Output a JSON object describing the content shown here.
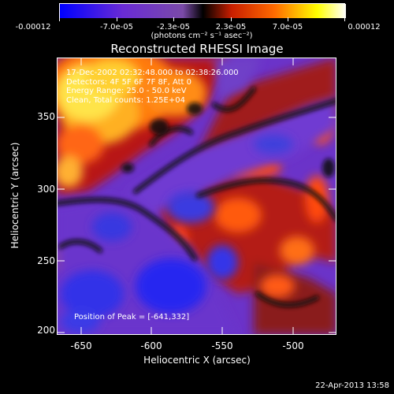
{
  "colorbar": {
    "tick_labels": [
      "-0.00012",
      "-7.0e-05",
      "-2.3e-05",
      "2.3e-05",
      "7.0e-05",
      "0.00012"
    ],
    "units": "(photons cm⁻² s⁻¹ asec⁻²)"
  },
  "title": "Reconstructed RHESSI Image",
  "info": {
    "line1": "17-Dec-2002 02:32:48.000 to 02:38:26.000",
    "line2": "Detectors: 4F 5F 6F 7F 8F, Att 0",
    "line3": "Energy Range: 25.0 - 50.0 keV",
    "line4": "Clean, Total counts: 1.25E+04"
  },
  "peak": "Position of Peak = [-641,332]",
  "axes": {
    "xlabel": "Heliocentric X (arcsec)",
    "ylabel": "Heliocentric Y (arcsec)",
    "xticks": [
      "-650",
      "-600",
      "-550",
      "-500"
    ],
    "yticks": [
      "350",
      "300",
      "250",
      "200"
    ]
  },
  "footer": "22-Apr-2013 13:58",
  "colors": {
    "colorbar_stops": [
      "#0000ff",
      "#6a2bd6",
      "#000000",
      "#c81e00",
      "#ff6a00",
      "#ffff00",
      "#ffffff"
    ]
  }
}
